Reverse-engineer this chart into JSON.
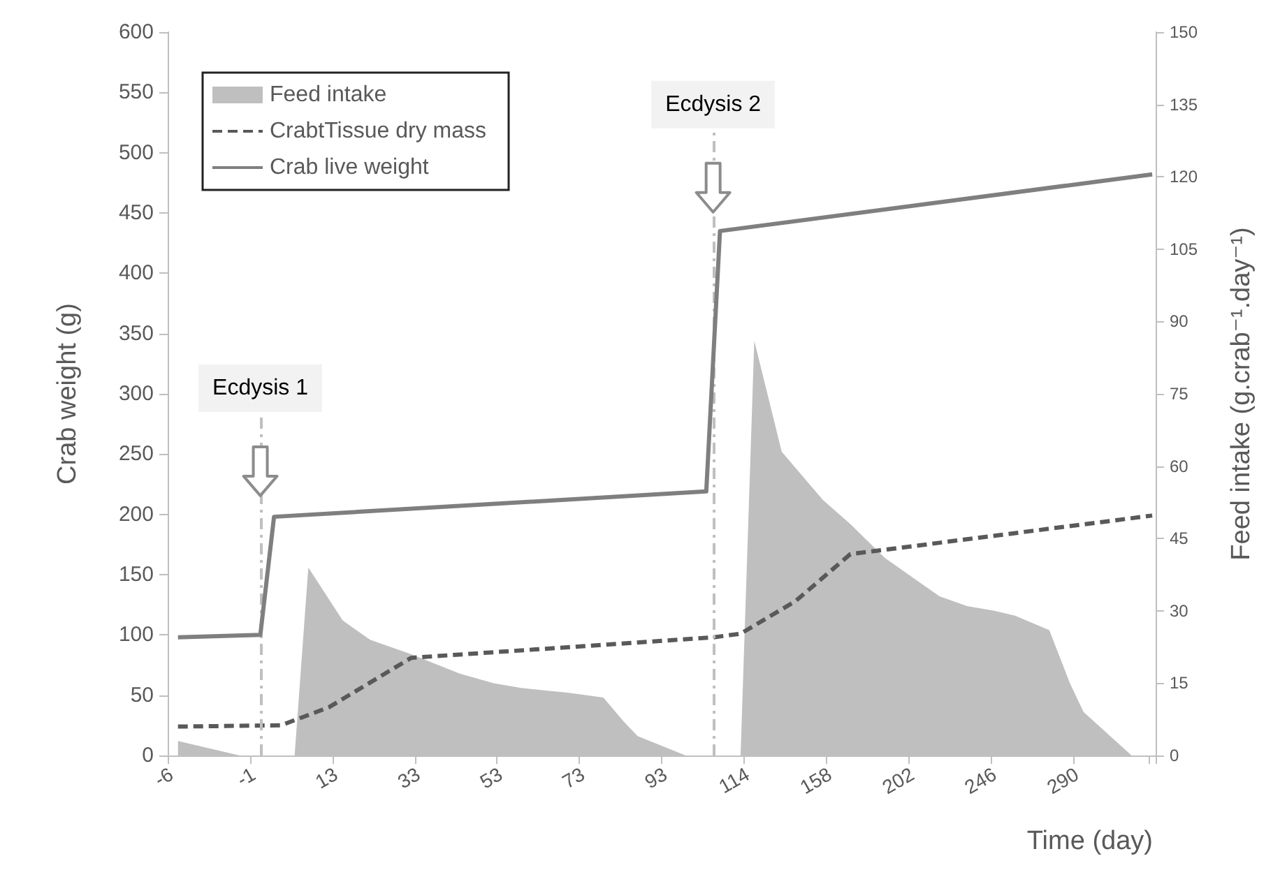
{
  "chart_data": {
    "type": "line",
    "xlabel": "Time (day)",
    "ylabel": "Crab weight (g)",
    "y2label": "Feed intake (g.crab⁻¹.day⁻¹)",
    "categories": [
      "-6",
      null,
      null,
      null,
      null,
      null,
      null,
      null,
      null,
      null,
      null,
      null,
      "-1",
      null,
      null,
      null,
      null,
      null,
      null,
      null,
      null,
      null,
      null,
      null,
      "13",
      null,
      null,
      null,
      null,
      null,
      null,
      null,
      null,
      null,
      null,
      null,
      "33",
      null,
      null,
      null,
      null,
      null,
      null,
      null,
      null,
      null,
      null,
      null,
      "53",
      null,
      null,
      null,
      null,
      null,
      null,
      null,
      null,
      null,
      null,
      null,
      "73",
      null,
      null,
      null,
      null,
      null,
      null,
      null,
      null,
      null,
      null,
      null,
      "93",
      null,
      null,
      null,
      null,
      null,
      null,
      null,
      null,
      null,
      null,
      null,
      "114",
      null,
      null,
      null,
      null,
      null,
      null,
      null,
      null,
      null,
      null,
      null,
      "158",
      null,
      null,
      null,
      null,
      null,
      null,
      null,
      null,
      null,
      null,
      null,
      "202",
      null,
      null,
      null,
      null,
      null,
      null,
      null,
      null,
      null,
      null,
      null,
      "246",
      null,
      null,
      null,
      null,
      null,
      null,
      null,
      null,
      null,
      null,
      null,
      "290",
      null,
      null,
      null,
      null,
      null,
      null,
      null,
      null,
      null,
      null,
      null
    ],
    "series": [
      {
        "name": "Feed intake",
        "type": "area",
        "axis": "y2",
        "color": "#bfbfbf",
        "values": [
          null,
          3,
          null,
          null,
          null,
          null,
          null,
          null,
          null,
          null,
          0,
          null,
          null,
          null,
          null,
          null,
          null,
          null,
          0,
          null,
          39,
          null,
          null,
          null,
          null,
          28,
          null,
          null,
          null,
          24,
          null,
          null,
          null,
          null,
          null,
          21,
          null,
          null,
          null,
          null,
          null,
          null,
          17,
          null,
          null,
          null,
          null,
          15,
          null,
          null,
          null,
          14,
          null,
          null,
          null,
          null,
          null,
          null,
          13,
          null,
          null,
          null,
          null,
          12,
          null,
          null,
          7,
          null,
          4,
          null,
          null,
          null,
          null,
          null,
          null,
          0,
          null,
          null,
          null,
          null,
          null,
          null,
          null,
          0,
          null,
          86,
          null,
          null,
          null,
          63,
          null,
          null,
          null,
          null,
          null,
          53,
          null,
          null,
          null,
          48,
          null,
          null,
          null,
          null,
          41,
          null,
          null,
          null,
          37,
          null,
          null,
          null,
          33,
          null,
          null,
          null,
          31,
          null,
          null,
          null,
          30,
          null,
          null,
          29,
          null,
          null,
          null,
          null,
          26,
          null,
          null,
          15,
          null,
          9,
          null,
          null,
          null,
          null,
          null,
          null,
          0,
          null,
          null,
          null
        ]
      },
      {
        "name": "CrabtTissue dry mass",
        "color": "#595959",
        "line_style": "dashed",
        "values": [
          null,
          24,
          null,
          null,
          null,
          null,
          null,
          null,
          null,
          null,
          null,
          null,
          null,
          null,
          null,
          null,
          25,
          null,
          null,
          null,
          null,
          null,
          null,
          40,
          null,
          null,
          null,
          null,
          null,
          null,
          null,
          null,
          null,
          null,
          null,
          81,
          null,
          null,
          null,
          null,
          null,
          null,
          null,
          null,
          null,
          null,
          null,
          null,
          null,
          null,
          null,
          null,
          null,
          null,
          null,
          null,
          null,
          null,
          null,
          null,
          null,
          null,
          null,
          null,
          null,
          null,
          null,
          null,
          null,
          null,
          null,
          null,
          null,
          null,
          null,
          null,
          null,
          null,
          null,
          98,
          null,
          null,
          null,
          101,
          null,
          null,
          null,
          null,
          null,
          null,
          null,
          128,
          null,
          null,
          null,
          null,
          null,
          null,
          null,
          167,
          null,
          null,
          null,
          null,
          null,
          null,
          null,
          null,
          null,
          null,
          null,
          null,
          null,
          null,
          null,
          null,
          null,
          null,
          null,
          null,
          null,
          null,
          null,
          null,
          null,
          null,
          null,
          null,
          null,
          null,
          null,
          null,
          null,
          null,
          null,
          null,
          null,
          null,
          null,
          null,
          null,
          null,
          null,
          199
        ]
      },
      {
        "name": "Crab live weight",
        "color": "#7f7f7f",
        "line_style": "solid",
        "values": [
          null,
          98,
          null,
          null,
          null,
          null,
          null,
          null,
          null,
          null,
          null,
          null,
          null,
          100,
          null,
          198,
          null,
          null,
          null,
          null,
          null,
          null,
          null,
          null,
          null,
          null,
          null,
          null,
          null,
          null,
          null,
          null,
          null,
          null,
          null,
          null,
          null,
          null,
          null,
          null,
          null,
          null,
          null,
          null,
          null,
          null,
          null,
          null,
          null,
          null,
          null,
          null,
          null,
          null,
          null,
          null,
          null,
          null,
          null,
          null,
          null,
          null,
          null,
          null,
          null,
          null,
          null,
          null,
          null,
          null,
          null,
          null,
          null,
          null,
          null,
          null,
          null,
          null,
          219,
          null,
          435,
          null,
          null,
          null,
          null,
          null,
          null,
          null,
          null,
          null,
          null,
          null,
          null,
          null,
          null,
          null,
          null,
          null,
          null,
          null,
          null,
          null,
          null,
          null,
          null,
          null,
          null,
          null,
          null,
          null,
          null,
          null,
          null,
          null,
          null,
          null,
          null,
          null,
          null,
          null,
          null,
          null,
          null,
          null,
          null,
          null,
          null,
          null,
          null,
          null,
          null,
          null,
          null,
          null,
          null,
          null,
          null,
          null,
          null,
          null,
          null,
          null,
          null,
          482
        ]
      }
    ],
    "ylim": [
      0,
      600
    ],
    "yticks": [
      0,
      50,
      100,
      150,
      200,
      250,
      300,
      350,
      400,
      450,
      500,
      550,
      600
    ],
    "y2lim": [
      0,
      150
    ],
    "y2ticks": [
      0,
      15,
      30,
      45,
      60,
      75,
      90,
      105,
      120,
      135,
      150
    ],
    "annotations": [
      {
        "text": "Ecdysis 1",
        "y": 0
      },
      "Ecdysis 2"
    ],
    "grid": false,
    "legend": "top left",
    "marker": "none"
  }
}
